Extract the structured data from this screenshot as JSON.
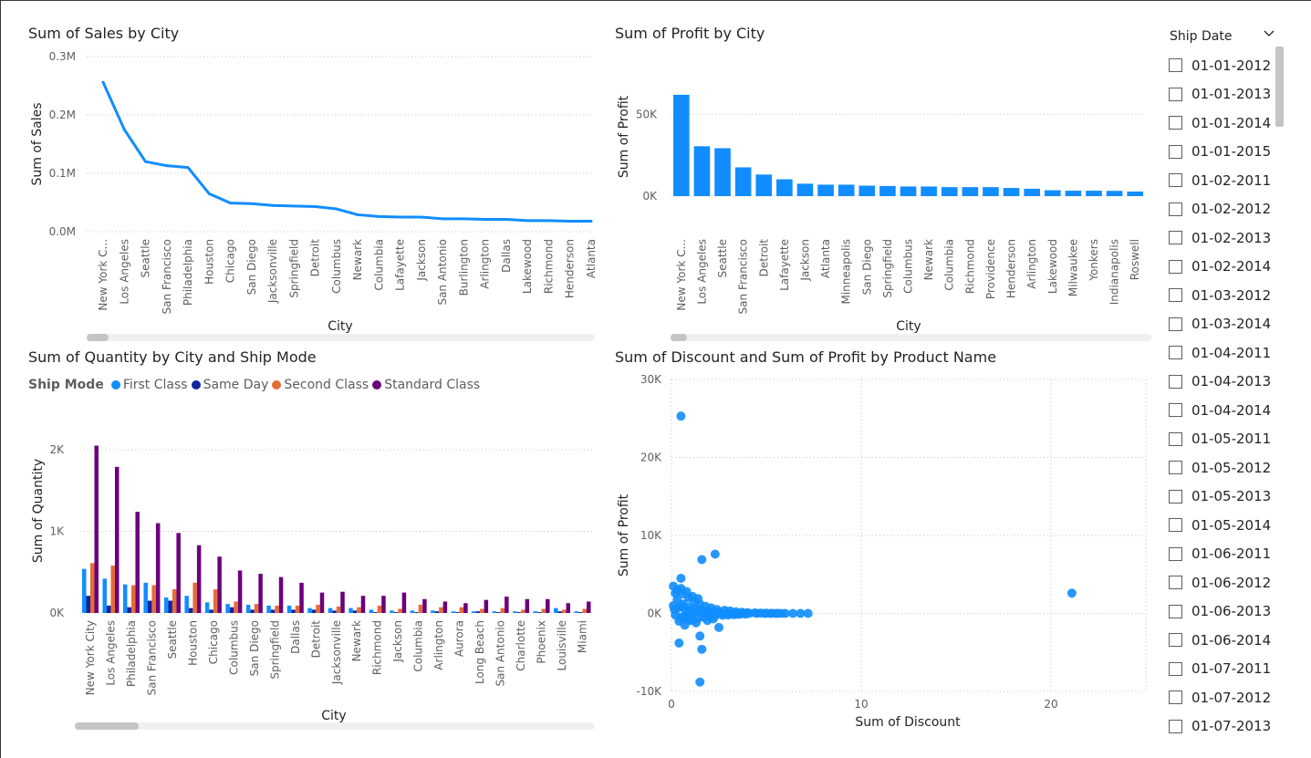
{
  "colors": {
    "primary": "#118DFF",
    "first_class": "#118DFF",
    "same_day": "#12239E",
    "second_class": "#E66C37",
    "standard_class": "#6B007B"
  },
  "slicer": {
    "title": "Ship Date",
    "chevron_icon": "chevron-down-icon",
    "items": [
      "01-01-2012",
      "01-01-2013",
      "01-01-2014",
      "01-01-2015",
      "01-02-2011",
      "01-02-2012",
      "01-02-2013",
      "01-02-2014",
      "01-03-2012",
      "01-03-2014",
      "01-04-2011",
      "01-04-2013",
      "01-04-2014",
      "01-05-2011",
      "01-05-2012",
      "01-05-2013",
      "01-05-2014",
      "01-06-2011",
      "01-06-2012",
      "01-06-2013",
      "01-06-2014",
      "01-07-2011",
      "01-07-2012",
      "01-07-2013"
    ]
  },
  "chart_data": [
    {
      "id": "sales",
      "type": "line",
      "title": "Sum of Sales by City",
      "xlabel": "City",
      "ylabel": "Sum of Sales",
      "ylim": [
        0,
        300000
      ],
      "yticks": [
        0,
        100000,
        200000,
        300000
      ],
      "yticklabels": [
        "0.0M",
        "0.1M",
        "0.2M",
        "0.3M"
      ],
      "grid": true,
      "categories": [
        "New York C...",
        "Los Angeles",
        "Seattle",
        "San Francisco",
        "Philadelphia",
        "Houston",
        "Chicago",
        "San Diego",
        "Jacksonville",
        "Springfield",
        "Detroit",
        "Columbus",
        "Newark",
        "Columbia",
        "Lafayette",
        "Jackson",
        "San Antonio",
        "Burlington",
        "Arlington",
        "Dallas",
        "Lakewood",
        "Richmond",
        "Henderson",
        "Atlanta"
      ],
      "values": [
        256000,
        175000,
        120000,
        113000,
        110000,
        65000,
        49000,
        48000,
        45000,
        44000,
        43000,
        39000,
        29000,
        26000,
        25000,
        25000,
        22000,
        22000,
        21000,
        21000,
        19000,
        19000,
        18000,
        18000
      ]
    },
    {
      "id": "profit",
      "type": "bar",
      "title": "Sum of Profit by City",
      "xlabel": "City",
      "ylabel": "Sum of Profit",
      "ylim": [
        0,
        72000
      ],
      "yticks": [
        0,
        50000
      ],
      "yticklabels": [
        "0K",
        "50K"
      ],
      "grid": true,
      "categories": [
        "New York C...",
        "Los Angeles",
        "Seattle",
        "San Francisco",
        "Detroit",
        "Lafayette",
        "Jackson",
        "Atlanta",
        "Minneapolis",
        "San Diego",
        "Springfield",
        "Columbus",
        "Newark",
        "Columbia",
        "Richmond",
        "Providence",
        "Henderson",
        "Arlington",
        "Lakewood",
        "Milwaukee",
        "Yonkers",
        "Indianapolis",
        "Roswell"
      ],
      "values": [
        62000,
        30500,
        29300,
        17600,
        13200,
        10300,
        7600,
        7000,
        7000,
        6400,
        6200,
        5900,
        5900,
        5500,
        5500,
        5500,
        5000,
        4500,
        3600,
        3300,
        3300,
        3200,
        2800
      ]
    },
    {
      "id": "quantity",
      "type": "bar",
      "title": "Sum of Quantity by City and Ship Mode",
      "xlabel": "City",
      "ylabel": "Sum of Quantity",
      "legend_title": "Ship Mode",
      "legend_position": "top-left",
      "ylim": [
        0,
        2000
      ],
      "yticks": [
        0,
        1000,
        2000
      ],
      "yticklabels": [
        "0K",
        "1K",
        "2K"
      ],
      "grid": true,
      "categories": [
        "New York City",
        "Los Angeles",
        "Philadelphia",
        "San Francisco",
        "Seattle",
        "Houston",
        "Chicago",
        "Columbus",
        "San Diego",
        "Springfield",
        "Dallas",
        "Detroit",
        "Jacksonville",
        "Newark",
        "Richmond",
        "Jackson",
        "Columbia",
        "Arlington",
        "Aurora",
        "Long Beach",
        "San Antonio",
        "Charlotte",
        "Phoenix",
        "Louisville",
        "Miami"
      ],
      "series": [
        {
          "name": "First Class",
          "values": [
            540,
            420,
            350,
            370,
            190,
            210,
            130,
            110,
            100,
            90,
            90,
            60,
            60,
            60,
            40,
            30,
            30,
            30,
            20,
            20,
            20,
            20,
            20,
            60,
            20
          ]
        },
        {
          "name": "Same Day",
          "values": [
            210,
            90,
            70,
            150,
            150,
            60,
            40,
            70,
            40,
            40,
            40,
            40,
            30,
            30,
            10,
            10,
            10,
            20,
            10,
            20,
            10,
            10,
            10,
            20,
            10
          ]
        },
        {
          "name": "Second Class",
          "values": [
            610,
            580,
            340,
            340,
            290,
            370,
            290,
            140,
            110,
            90,
            90,
            100,
            80,
            70,
            90,
            50,
            100,
            70,
            70,
            50,
            60,
            40,
            50,
            40,
            50
          ]
        },
        {
          "name": "Standard Class",
          "values": [
            2050,
            1790,
            1240,
            1100,
            980,
            830,
            690,
            520,
            480,
            440,
            370,
            250,
            260,
            210,
            210,
            250,
            170,
            140,
            120,
            160,
            200,
            170,
            170,
            120,
            140
          ]
        }
      ]
    },
    {
      "id": "scatter",
      "type": "scatter",
      "title": "Sum of Discount and Sum of Profit by Product Name",
      "xlabel": "Sum of Discount",
      "ylabel": "Sum of Profit",
      "xlim": [
        0,
        25
      ],
      "ylim": [
        -10000,
        30000
      ],
      "xticks": [
        0,
        10,
        20
      ],
      "xticklabels": [
        "0",
        "10",
        "20"
      ],
      "yticks": [
        -10000,
        0,
        10000,
        20000,
        30000
      ],
      "yticklabels": [
        "-10K",
        "0K",
        "10K",
        "20K",
        "30K"
      ],
      "grid": true,
      "points": [
        [
          0.5,
          25300
        ],
        [
          21.1,
          2600
        ],
        [
          2.3,
          7600
        ],
        [
          1.6,
          6900
        ],
        [
          0.5,
          4500
        ],
        [
          1.6,
          -4600
        ],
        [
          0.4,
          -3800
        ],
        [
          1.5,
          -8800
        ],
        [
          1.5,
          -2900
        ],
        [
          2.5,
          -1800
        ],
        [
          0.7,
          -1500
        ],
        [
          1.0,
          -900
        ],
        [
          0.1,
          3500
        ],
        [
          0.3,
          3000
        ],
        [
          0.6,
          2500
        ],
        [
          0.9,
          2000
        ],
        [
          1.2,
          1500
        ],
        [
          1.5,
          1200
        ],
        [
          1.8,
          900
        ],
        [
          2.1,
          700
        ],
        [
          2.4,
          500
        ],
        [
          2.8,
          400
        ],
        [
          3.1,
          300
        ],
        [
          3.4,
          200
        ],
        [
          3.7,
          150
        ],
        [
          4.0,
          100
        ],
        [
          4.4,
          80
        ],
        [
          4.7,
          50
        ],
        [
          5.0,
          30
        ],
        [
          5.3,
          20
        ],
        [
          5.6,
          10
        ],
        [
          6.0,
          0
        ],
        [
          6.4,
          0
        ],
        [
          6.8,
          0
        ],
        [
          7.2,
          0
        ],
        [
          0.2,
          -200
        ],
        [
          0.5,
          -500
        ],
        [
          0.8,
          -700
        ],
        [
          1.1,
          -800
        ],
        [
          1.4,
          -600
        ],
        [
          1.7,
          -500
        ],
        [
          2.0,
          -400
        ],
        [
          2.3,
          -300
        ],
        [
          2.7,
          -250
        ],
        [
          3.0,
          -200
        ],
        [
          3.3,
          -150
        ],
        [
          3.6,
          -100
        ],
        [
          3.9,
          -80
        ],
        [
          0.1,
          1000
        ],
        [
          0.3,
          1800
        ],
        [
          0.6,
          1200
        ],
        [
          0.9,
          800
        ],
        [
          1.2,
          600
        ],
        [
          1.5,
          400
        ],
        [
          1.8,
          300
        ],
        [
          2.1,
          200
        ],
        [
          2.4,
          100
        ],
        [
          0.4,
          -1000
        ],
        [
          0.7,
          -300
        ],
        [
          1.0,
          -200
        ],
        [
          1.3,
          -1200
        ],
        [
          1.9,
          -900
        ],
        [
          2.2,
          -700
        ],
        [
          0.2,
          2600
        ],
        [
          0.5,
          3200
        ],
        [
          0.8,
          2800
        ],
        [
          1.1,
          2200
        ],
        [
          1.4,
          1900
        ],
        [
          0.15,
          500
        ],
        [
          0.35,
          700
        ],
        [
          0.55,
          900
        ],
        [
          0.75,
          400
        ],
        [
          0.95,
          300
        ],
        [
          1.25,
          200
        ],
        [
          1.65,
          100
        ],
        [
          1.95,
          50
        ],
        [
          2.6,
          20
        ],
        [
          2.9,
          0
        ],
        [
          3.2,
          -50
        ],
        [
          3.5,
          -100
        ],
        [
          3.8,
          0
        ],
        [
          4.1,
          0
        ],
        [
          4.5,
          0
        ],
        [
          4.9,
          0
        ],
        [
          5.2,
          0
        ],
        [
          5.5,
          0
        ],
        [
          5.8,
          0
        ]
      ]
    }
  ]
}
